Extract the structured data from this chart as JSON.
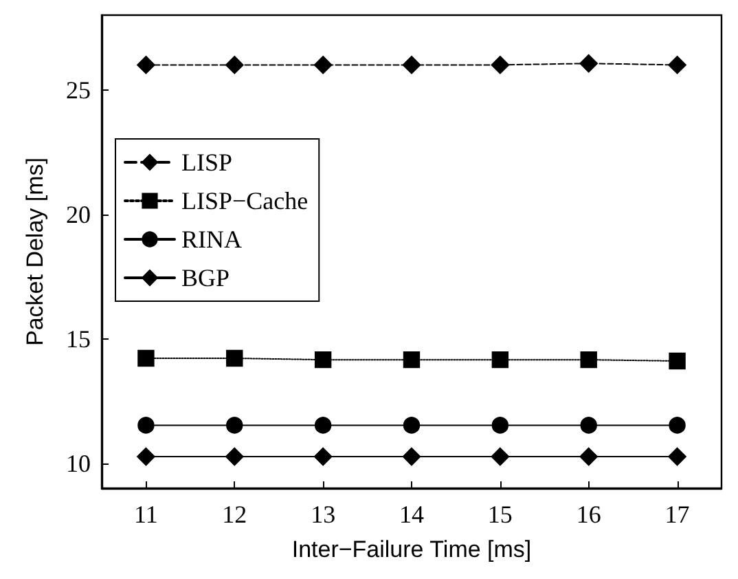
{
  "chart_data": {
    "type": "line",
    "xlabel": "Inter−Failure Time [ms]",
    "ylabel": "Packet Delay [ms]",
    "x": [
      11,
      12,
      13,
      14,
      15,
      16,
      17
    ],
    "xlim": [
      10.5,
      17.5
    ],
    "xticks": [
      11,
      12,
      13,
      14,
      15,
      16,
      17
    ],
    "ylim": [
      9,
      28
    ],
    "yticks": [
      10,
      15,
      20,
      25
    ],
    "grid": false,
    "legend": "top left",
    "series": [
      {
        "name": "LISP",
        "color": "#000000",
        "marker": "diamond",
        "line_style": "dashed",
        "values": [
          26.0,
          26.0,
          26.0,
          26.0,
          26.0,
          26.06,
          26.0
        ]
      },
      {
        "name": "LISP−Cache",
        "color": "#000000",
        "marker": "square",
        "line_style": "dotted",
        "values": [
          14.22,
          14.22,
          14.16,
          14.16,
          14.16,
          14.16,
          14.11
        ]
      },
      {
        "name": "RINA",
        "color": "#000000",
        "marker": "circle",
        "line_style": "solid",
        "values": [
          11.53,
          11.53,
          11.53,
          11.53,
          11.53,
          11.53,
          11.53
        ]
      },
      {
        "name": "BGP",
        "color": "#000000",
        "marker": "diamond",
        "line_style": "solid",
        "values": [
          10.27,
          10.27,
          10.27,
          10.27,
          10.27,
          10.27,
          10.27
        ]
      }
    ]
  }
}
